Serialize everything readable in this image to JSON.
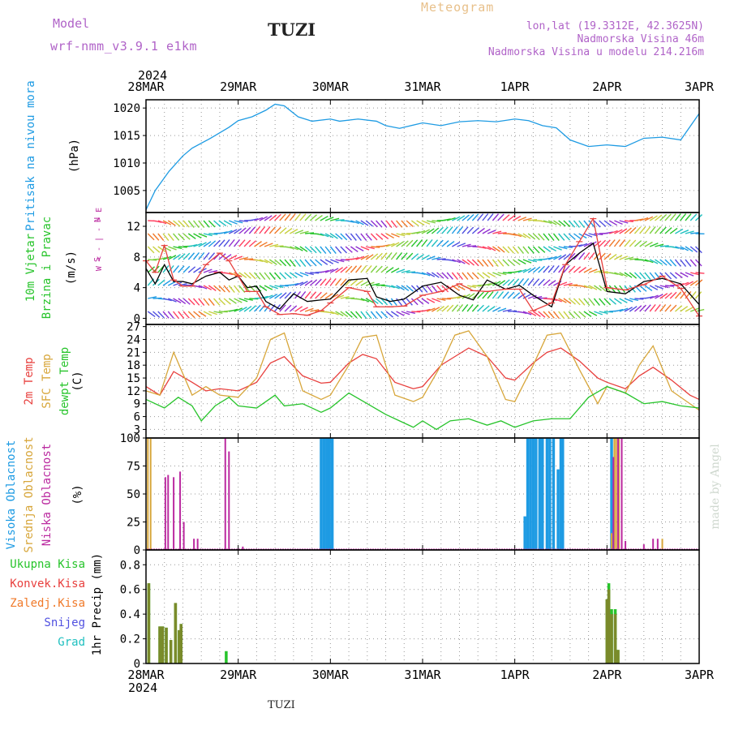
{
  "header": {
    "model_label": "Model",
    "model_name": "wrf-nmm_v3.9.1 e1km",
    "station": "TUZI",
    "meteogram": "Meteogram",
    "lonlat": "lon,lat (19.3312E, 42.3625N)",
    "elevation": "Nadmorska Visina 46m",
    "model_elevation": "Nadmorska Visina u modelu 214.216m",
    "bottom_station": "TUZI",
    "credit": "made by Angel"
  },
  "time_axis": {
    "year": "2024",
    "days": [
      "28MAR",
      "29MAR",
      "30MAR",
      "31MAR",
      "1APR",
      "2APR",
      "3APR"
    ]
  },
  "colors": {
    "pressure": "#1e9be3",
    "temp": "#e8403e",
    "sfc_temp": "#d7a63a",
    "dewpt": "#27c42b",
    "high_cloud": "#1e9be3",
    "mid_cloud": "#d7a63a",
    "low_cloud": "#bb2aa0",
    "precip_total": "#27c42b",
    "precip_conv": "#e8403e",
    "precip_frozen": "#f07a2a",
    "snow": "#5050e0",
    "graupel": "#20c0c0",
    "wind_speed": "#000000",
    "wind_gust": "#e8403e"
  },
  "chart_data": [
    {
      "type": "line",
      "id": "pressure",
      "ylabel_lines": [
        "Pritisak na nivou mora",
        "(hPa)"
      ],
      "ylim": [
        1001,
        1021.5
      ],
      "yticks": [
        1005,
        1010,
        1015,
        1020
      ],
      "series": [
        {
          "x": [
            0,
            0.1,
            0.25,
            0.4,
            0.5,
            0.7,
            0.9,
            1.0,
            1.15,
            1.3,
            1.4,
            1.5,
            1.65,
            1.8,
            2.0,
            2.1,
            2.3,
            2.5,
            2.6,
            2.75,
            3.0,
            3.2,
            3.4,
            3.6,
            3.8,
            4.0,
            4.15,
            4.3,
            4.45,
            4.6,
            4.8,
            5.0,
            5.2,
            5.4,
            5.6,
            5.8,
            6.0
          ],
          "y": [
            1001.5,
            1005,
            1008.5,
            1011.3,
            1012.7,
            1014.5,
            1016.5,
            1017.7,
            1018.4,
            1019.6,
            1020.7,
            1020.4,
            1018.4,
            1017.6,
            1018,
            1017.6,
            1018,
            1017.6,
            1016.8,
            1016.3,
            1017.3,
            1016.8,
            1017.5,
            1017.7,
            1017.5,
            1018,
            1017.7,
            1016.8,
            1016.4,
            1014.2,
            1013,
            1013.3,
            1013,
            1014.5,
            1014.7,
            1014.2,
            1019
          ]
        }
      ]
    },
    {
      "type": "line",
      "id": "wind",
      "ylabel_lines": [
        "10m Vjetar",
        "Brzina i Pravac",
        "(m/s)"
      ],
      "direction_key": [
        "N",
        "W < - | - > E",
        "S"
      ],
      "ylim": [
        -0.8,
        13.8
      ],
      "yticks": [
        0,
        4,
        8,
        12
      ],
      "series": [
        {
          "name": "speed",
          "x": [
            0,
            0.1,
            0.2,
            0.3,
            0.4,
            0.5,
            0.65,
            0.8,
            0.9,
            1.0,
            1.1,
            1.2,
            1.3,
            1.45,
            1.6,
            1.75,
            1.9,
            2.0,
            2.2,
            2.4,
            2.5,
            2.65,
            2.8,
            3.0,
            3.2,
            3.4,
            3.55,
            3.7,
            3.9,
            4.05,
            4.2,
            4.4,
            4.55,
            4.7,
            4.85,
            5.0,
            5.2,
            5.4,
            5.6,
            5.8,
            6.0
          ],
          "y": [
            6.5,
            4.5,
            7,
            4.8,
            4.8,
            4.5,
            5.5,
            6,
            5,
            5.5,
            4,
            4.2,
            2.2,
            1.2,
            3.2,
            2.2,
            2.4,
            2.5,
            5,
            5.2,
            2.8,
            2.2,
            2.5,
            4.2,
            4.7,
            3,
            2.4,
            5,
            3.8,
            4.3,
            3,
            1.5,
            7,
            8.5,
            9.8,
            3.5,
            3.2,
            4.8,
            5.2,
            4.5,
            1.8
          ]
        },
        {
          "name": "gust",
          "x": [
            0,
            0.1,
            0.2,
            0.3,
            0.4,
            0.5,
            0.65,
            0.8,
            0.9,
            1.0,
            1.1,
            1.2,
            1.3,
            1.45,
            1.6,
            1.75,
            1.9,
            2.0,
            2.2,
            2.4,
            2.5,
            2.65,
            2.8,
            3.0,
            3.2,
            3.4,
            3.55,
            3.7,
            3.9,
            4.05,
            4.2,
            4.4,
            4.55,
            4.7,
            4.85,
            5.0,
            5.2,
            5.4,
            5.6,
            5.8,
            6.0
          ],
          "y": [
            7.5,
            6,
            9.5,
            5,
            4.2,
            4.2,
            7,
            8.5,
            7.5,
            5.5,
            3.5,
            3.5,
            1.5,
            0.5,
            0.6,
            0.4,
            1,
            2,
            4,
            3.5,
            1.5,
            1.5,
            1.6,
            3,
            3.5,
            4.5,
            3.6,
            3.5,
            3.8,
            3.8,
            1,
            2,
            7,
            10,
            13,
            4,
            3.7,
            4.4,
            5.5,
            3.9,
            0.3
          ]
        }
      ]
    },
    {
      "type": "line",
      "id": "temperature",
      "ylabel_lines": [
        "2m Temp",
        "SFC Temp",
        "dewpt Temp",
        "(C)"
      ],
      "ylim": [
        1,
        27.5
      ],
      "yticks": [
        3,
        6,
        9,
        12,
        15,
        18,
        21,
        24,
        27
      ],
      "series": [
        {
          "name": "2m Temp",
          "x": [
            0,
            0.15,
            0.3,
            0.5,
            0.65,
            0.8,
            1.0,
            1.2,
            1.35,
            1.5,
            1.7,
            1.9,
            2.0,
            2.2,
            2.35,
            2.5,
            2.7,
            2.9,
            3.0,
            3.2,
            3.35,
            3.5,
            3.7,
            3.9,
            4.0,
            4.2,
            4.35,
            4.5,
            4.7,
            4.9,
            5.0,
            5.2,
            5.35,
            5.5,
            5.7,
            5.9,
            6.0
          ],
          "y": [
            13,
            11,
            16.5,
            14,
            12,
            12.5,
            12,
            14,
            18.5,
            20,
            15.5,
            13.8,
            14,
            18.5,
            20.5,
            19.5,
            14,
            12.5,
            13,
            18,
            20,
            22,
            20,
            15,
            14.5,
            18.5,
            21,
            22,
            19,
            15,
            14,
            12.5,
            15.5,
            17.5,
            14.5,
            11,
            10
          ]
        },
        {
          "name": "SFC Temp",
          "x": [
            0,
            0.15,
            0.3,
            0.5,
            0.65,
            0.8,
            1.0,
            1.2,
            1.35,
            1.5,
            1.7,
            1.9,
            2.0,
            2.2,
            2.35,
            2.5,
            2.7,
            2.9,
            3.0,
            3.2,
            3.35,
            3.5,
            3.7,
            3.9,
            4.0,
            4.2,
            4.35,
            4.5,
            4.7,
            4.9,
            5.0,
            5.2,
            5.35,
            5.5,
            5.7,
            5.9,
            6.0
          ],
          "y": [
            12,
            11,
            21,
            11,
            13,
            11,
            10.5,
            15,
            24,
            25.5,
            12,
            10,
            11,
            18,
            24.5,
            25,
            11,
            9.5,
            10.5,
            18,
            25,
            26,
            20,
            10,
            9.5,
            18,
            25,
            25.5,
            17,
            9,
            13,
            11.5,
            18,
            22.5,
            12,
            9,
            7.5
          ]
        },
        {
          "name": "dewpt Temp",
          "x": [
            0,
            0.2,
            0.35,
            0.5,
            0.6,
            0.75,
            0.9,
            1.0,
            1.2,
            1.4,
            1.5,
            1.7,
            1.9,
            2.0,
            2.2,
            2.4,
            2.6,
            2.75,
            2.9,
            3.0,
            3.15,
            3.3,
            3.5,
            3.7,
            3.85,
            4.0,
            4.2,
            4.4,
            4.6,
            4.8,
            5.0,
            5.2,
            5.4,
            5.6,
            5.8,
            6.0
          ],
          "y": [
            10,
            8,
            10.5,
            8.5,
            5,
            8.5,
            10.5,
            8.5,
            8,
            11,
            8.5,
            9,
            7,
            8,
            11.5,
            9,
            6.5,
            5,
            3.5,
            5,
            3,
            5,
            5.5,
            4,
            5,
            3.5,
            5,
            5.5,
            5.5,
            10.5,
            13,
            11.5,
            9,
            9.5,
            8.5,
            8
          ]
        }
      ]
    },
    {
      "type": "bar",
      "id": "clouds",
      "ylabel_lines": [
        "Visoka Oblacnost",
        "Srednja Oblacnost",
        "Niska Oblacnost",
        "(%)"
      ],
      "ylim": [
        0,
        100
      ],
      "yticks": [
        0,
        25,
        50,
        75,
        100
      ],
      "series": [
        {
          "name": "Visoka Oblacnost",
          "x": [
            1.9,
            1.93,
            1.96,
            1.99,
            2.02,
            4.11,
            4.14,
            4.17,
            4.2,
            4.23,
            4.27,
            4.3,
            4.35,
            4.38,
            4.42,
            4.47,
            4.5,
            4.52,
            5.05
          ],
          "values": [
            100,
            100,
            100,
            100,
            100,
            30,
            100,
            100,
            100,
            100,
            100,
            100,
            100,
            100,
            100,
            72,
            100,
            100,
            100
          ]
        },
        {
          "name": "Srednja Oblacnost",
          "x": [
            0.02,
            0.05,
            5.05,
            5.08,
            5.1,
            5.13,
            5.16,
            5.6
          ],
          "values": [
            100,
            100,
            15,
            100,
            100,
            100,
            100,
            10
          ]
        },
        {
          "name": "Niska Oblacnost",
          "x": [
            0.21,
            0.24,
            0.3,
            0.37,
            0.41,
            0.52,
            0.56,
            0.86,
            0.9,
            1.05,
            5.07,
            5.12,
            5.16,
            5.2,
            5.4,
            5.5,
            5.55
          ],
          "values": [
            65,
            67,
            65,
            70,
            25,
            10,
            10,
            100,
            88,
            3,
            83,
            100,
            100,
            8,
            5,
            10,
            10
          ]
        }
      ]
    },
    {
      "type": "bar",
      "id": "precip",
      "ylabel_lines": [
        "1hr Precip (mm)"
      ],
      "legend": [
        "Ukupna Kisa",
        "Konvek.Kisa",
        "Zaledj.Kisa",
        "Snijeg",
        "Grad"
      ],
      "ylim": [
        0,
        0.92
      ],
      "yticks": [
        0,
        0.2,
        0.4,
        0.6,
        0.8
      ],
      "series": [
        {
          "name": "Ukupna Kisa",
          "x": [
            0.03,
            0.15,
            0.18,
            0.22,
            0.27,
            0.32,
            0.36,
            0.38,
            0.87,
            5.0,
            5.02,
            5.05,
            5.09,
            5.12
          ],
          "values": [
            0.65,
            0.3,
            0.3,
            0.29,
            0.19,
            0.49,
            0.27,
            0.32,
            0.1,
            0.52,
            0.65,
            0.44,
            0.44,
            0.11
          ]
        },
        {
          "name": "Konvek.Kisa",
          "x": [
            0.03,
            0.15,
            0.18,
            0.22,
            0.27,
            0.32,
            0.36,
            0.38,
            5.0,
            5.02,
            5.05,
            5.09,
            5.12
          ],
          "values": [
            0.65,
            0.3,
            0.3,
            0.29,
            0.19,
            0.49,
            0.27,
            0.32,
            0.52,
            0.6,
            0.4,
            0.4,
            0.11
          ]
        }
      ]
    }
  ]
}
